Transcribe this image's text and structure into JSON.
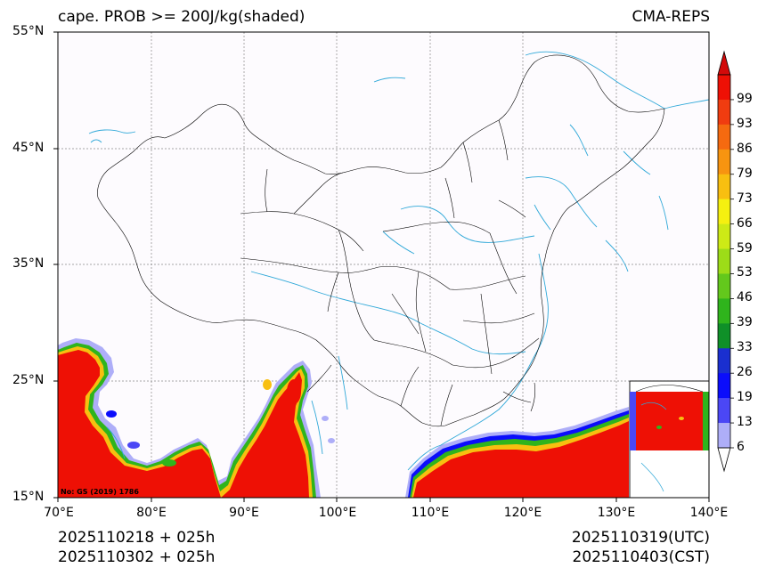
{
  "header": {
    "title_left": "cape. PROB >= 200J/kg(shaded)",
    "title_right": "CMA-REPS"
  },
  "axes": {
    "lat_labels": [
      "55°N",
      "45°N",
      "35°N",
      "25°N",
      "15°N"
    ],
    "lon_labels": [
      "70°E",
      "80°E",
      "90°E",
      "100°E",
      "110°E",
      "120°E",
      "130°E",
      "140°E"
    ]
  },
  "map": {
    "lon_range": [
      70,
      140
    ],
    "lat_range": [
      15,
      55
    ],
    "background": "#fdfbfe",
    "coast_color": "#2fa8d8",
    "border_color": "#000000",
    "grid_color": "#888888",
    "watermark": "No: GS (2019) 1786"
  },
  "colorbar": {
    "labels": [
      "99",
      "93",
      "86",
      "79",
      "73",
      "66",
      "59",
      "53",
      "46",
      "39",
      "33",
      "26",
      "19",
      "13",
      "6"
    ],
    "colors": [
      "#ee1005",
      "#f03c10",
      "#f56a10",
      "#f79410",
      "#f8bf10",
      "#f5f010",
      "#cdea16",
      "#9ddc18",
      "#63c81c",
      "#2fb41c",
      "#0f9028",
      "#1a2fd0",
      "#0b0dfb",
      "#4b47f5",
      "#aeaef8"
    ],
    "over_color": "#d30a0a",
    "under_color": "#ffffff"
  },
  "footer": {
    "init_utc": "2025110218  +  025h",
    "init_cst": "2025110302  +  025h",
    "valid_utc": "2025110319(UTC)",
    "valid_cst": "2025110403(CST)"
  }
}
